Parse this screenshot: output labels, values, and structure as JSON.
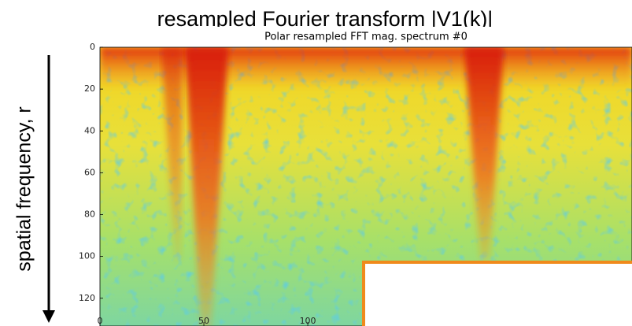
{
  "chart_data": {
    "type": "heatmap",
    "suptitle": "resampled Fourier transform |V1(k)|",
    "title": "Polar resampled FFT mag. spectrum #0",
    "ylabel": "spatial frequency, r",
    "xlim": [
      0,
      256
    ],
    "xticks": [
      0,
      50,
      100
    ],
    "ylim": [
      0,
      128
    ],
    "y_inverted": true,
    "yticks": [
      0,
      20,
      40,
      60,
      80,
      100,
      120
    ]
  }
}
